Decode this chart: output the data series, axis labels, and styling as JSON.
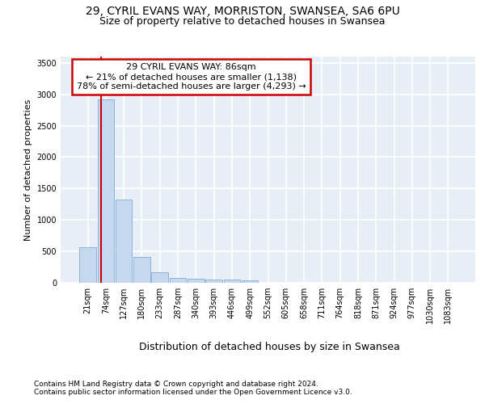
{
  "title1": "29, CYRIL EVANS WAY, MORRISTON, SWANSEA, SA6 6PU",
  "title2": "Size of property relative to detached houses in Swansea",
  "xlabel": "Distribution of detached houses by size in Swansea",
  "ylabel": "Number of detached properties",
  "footnote1": "Contains HM Land Registry data © Crown copyright and database right 2024.",
  "footnote2": "Contains public sector information licensed under the Open Government Licence v3.0.",
  "bin_labels": [
    "21sqm",
    "74sqm",
    "127sqm",
    "180sqm",
    "233sqm",
    "287sqm",
    "340sqm",
    "393sqm",
    "446sqm",
    "499sqm",
    "552sqm",
    "605sqm",
    "658sqm",
    "711sqm",
    "764sqm",
    "818sqm",
    "871sqm",
    "924sqm",
    "977sqm",
    "1030sqm",
    "1083sqm"
  ],
  "bar_heights": [
    570,
    2920,
    1320,
    410,
    165,
    80,
    60,
    55,
    50,
    45,
    0,
    0,
    0,
    0,
    0,
    0,
    0,
    0,
    0,
    0,
    0
  ],
  "bar_color": "#c5d8f0",
  "bar_edge_color": "#8cb4d8",
  "annotation_text": "29 CYRIL EVANS WAY: 86sqm\n← 21% of detached houses are smaller (1,138)\n78% of semi-detached houses are larger (4,293) →",
  "annotation_box_color": "#ffffff",
  "annotation_box_edge_color": "#cc0000",
  "prop_line_color": "#cc0000",
  "ylim": [
    0,
    3600
  ],
  "yticks": [
    0,
    500,
    1000,
    1500,
    2000,
    2500,
    3000,
    3500
  ],
  "background_color": "#e8eef5",
  "grid_color": "#ffffff",
  "title1_fontsize": 10,
  "title2_fontsize": 9,
  "xlabel_fontsize": 9,
  "ylabel_fontsize": 8,
  "tick_fontsize": 7,
  "annotation_fontsize": 8,
  "footnote_fontsize": 6.5
}
